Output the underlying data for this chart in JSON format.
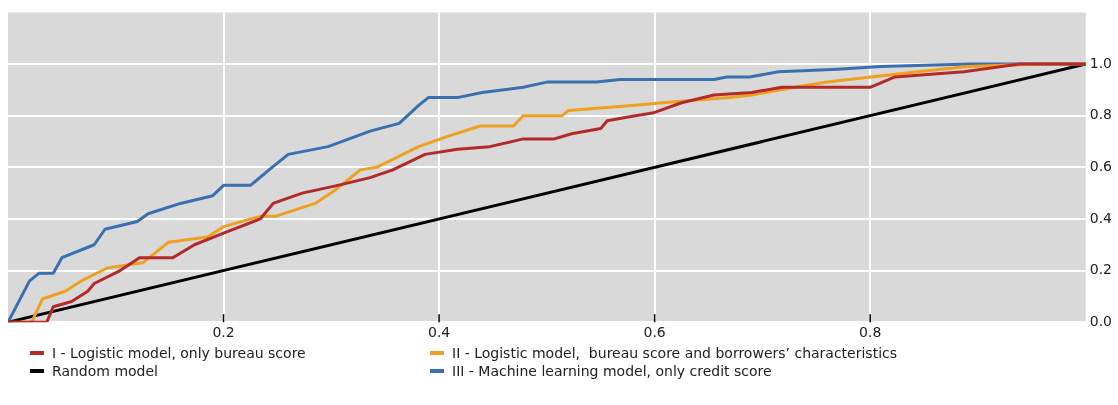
{
  "chart_data": {
    "type": "line",
    "xlim": [
      0,
      1
    ],
    "xticks": [
      0.2,
      0.4,
      0.6,
      0.8
    ],
    "ylim": [
      0,
      1.2
    ],
    "yticks": [
      {
        "value": 0,
        "label": "0.0"
      },
      0.2,
      0.4,
      0.6,
      0.8,
      {
        "value": 1,
        "label": "1.0"
      }
    ],
    "grid": true,
    "legend": "bottom",
    "marker": "none",
    "line_style": "solid",
    "series": [
      {
        "name": "I - Logistic model, only bureau score",
        "color": "#b22a2a",
        "x": [
          0,
          0.036,
          0.042,
          0.059,
          0.074,
          0.08,
          0.104,
          0.122,
          0.153,
          0.173,
          0.203,
          0.234,
          0.246,
          0.273,
          0.306,
          0.336,
          0.357,
          0.387,
          0.417,
          0.447,
          0.478,
          0.507,
          0.523,
          0.55,
          0.556,
          0.582,
          0.598,
          0.625,
          0.655,
          0.69,
          0.718,
          0.8,
          0.823,
          0.887,
          0.938,
          1
        ],
        "values": [
          0,
          0,
          0.06,
          0.08,
          0.12,
          0.15,
          0.2,
          0.25,
          0.25,
          0.3,
          0.35,
          0.4,
          0.46,
          0.5,
          0.53,
          0.56,
          0.59,
          0.65,
          0.67,
          0.68,
          0.71,
          0.71,
          0.73,
          0.75,
          0.78,
          0.8,
          0.81,
          0.85,
          0.88,
          0.89,
          0.91,
          0.91,
          0.95,
          0.97,
          1.0,
          1.0
        ]
      },
      {
        "name": "II - Logistic model,  bureau score and borrowers’ characteristics",
        "color": "#f0a020",
        "x": [
          0,
          0.022,
          0.032,
          0.053,
          0.068,
          0.092,
          0.125,
          0.149,
          0.185,
          0.2,
          0.234,
          0.248,
          0.285,
          0.303,
          0.327,
          0.342,
          0.381,
          0.408,
          0.438,
          0.469,
          0.478,
          0.514,
          0.52,
          0.582,
          0.607,
          0.67,
          0.69,
          0.73,
          0.76,
          0.823,
          0.89,
          0.96,
          1
        ],
        "values": [
          0,
          0,
          0.09,
          0.12,
          0.16,
          0.21,
          0.23,
          0.31,
          0.33,
          0.37,
          0.41,
          0.41,
          0.46,
          0.51,
          0.59,
          0.6,
          0.68,
          0.72,
          0.76,
          0.76,
          0.8,
          0.8,
          0.82,
          0.84,
          0.85,
          0.87,
          0.88,
          0.91,
          0.93,
          0.96,
          0.99,
          1.0,
          1.0
        ]
      },
      {
        "name": "Random model",
        "color": "#000000",
        "x": [
          0,
          1
        ],
        "values": [
          0,
          1
        ]
      },
      {
        "name": "III - Machine learning model, only credit score",
        "color": "#3a6fb0",
        "x": [
          0,
          0.02,
          0.029,
          0.042,
          0.05,
          0.08,
          0.09,
          0.12,
          0.13,
          0.16,
          0.19,
          0.2,
          0.225,
          0.245,
          0.26,
          0.297,
          0.336,
          0.363,
          0.381,
          0.39,
          0.417,
          0.44,
          0.478,
          0.5,
          0.546,
          0.568,
          0.655,
          0.667,
          0.688,
          0.715,
          0.77,
          0.81,
          0.893,
          1
        ],
        "values": [
          0,
          0.16,
          0.19,
          0.19,
          0.25,
          0.3,
          0.36,
          0.39,
          0.42,
          0.46,
          0.49,
          0.53,
          0.53,
          0.6,
          0.65,
          0.68,
          0.74,
          0.77,
          0.84,
          0.87,
          0.87,
          0.89,
          0.91,
          0.93,
          0.93,
          0.94,
          0.94,
          0.95,
          0.95,
          0.97,
          0.98,
          0.99,
          1.0,
          1.0
        ]
      }
    ]
  }
}
